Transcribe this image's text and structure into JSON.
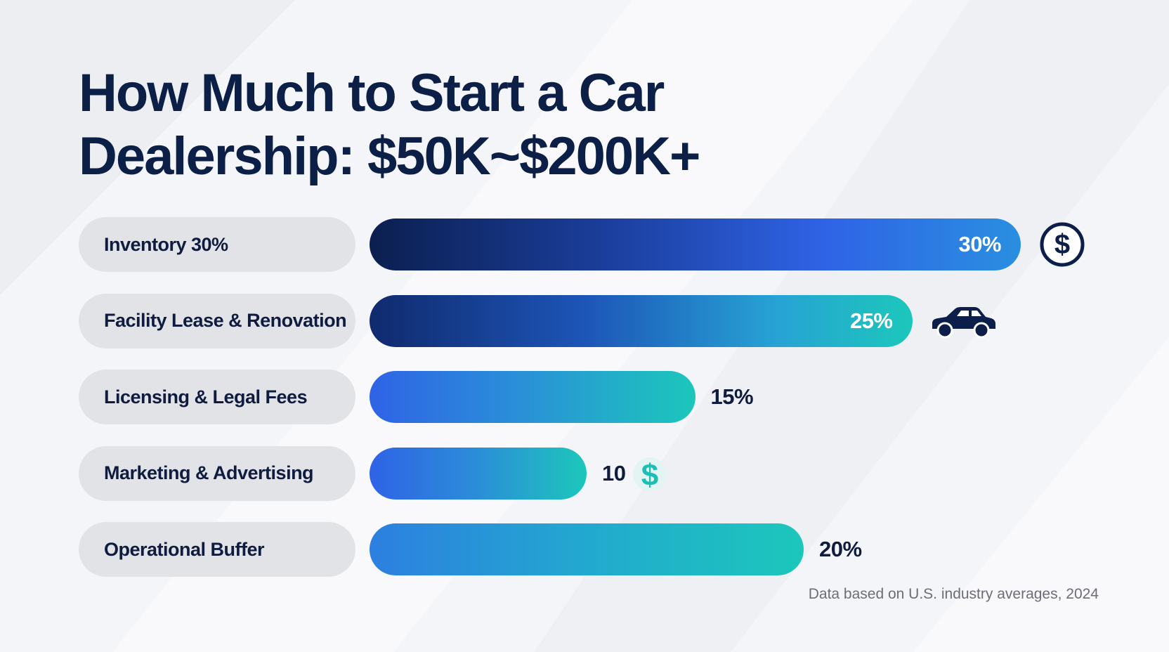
{
  "title": "How Much to Start a Car\nDealership: $50K~$200K+",
  "footnote": "Data based on U.S. industry averages, 2024",
  "colors": {
    "title": "#0b1f47",
    "label_pill": "#e2e3e7",
    "navy": "#0b1f4f",
    "blue": "#2f63e6",
    "teal": "#1cc7bb",
    "icon_dark": "#0c1f4a",
    "icon_teal": "#1dbfb4"
  },
  "chart_data": {
    "type": "bar",
    "orientation": "horizontal",
    "categories": [
      "Inventory 30%",
      "Facility Lease & Renovation",
      "Licensing & Legal Fees",
      "Marketing & Advertising",
      "Operational Buffer"
    ],
    "values": [
      30,
      25,
      15,
      10,
      20
    ],
    "value_labels": [
      "30%",
      "25%",
      "15%",
      "10",
      "20%"
    ],
    "icons": [
      "dollar-circle-icon",
      "car-icon",
      "",
      "dollar-sign-icon",
      ""
    ],
    "title": "How Much to Start a Car\nDealership: $50K~$200K+",
    "legend": "none",
    "grid": false
  }
}
